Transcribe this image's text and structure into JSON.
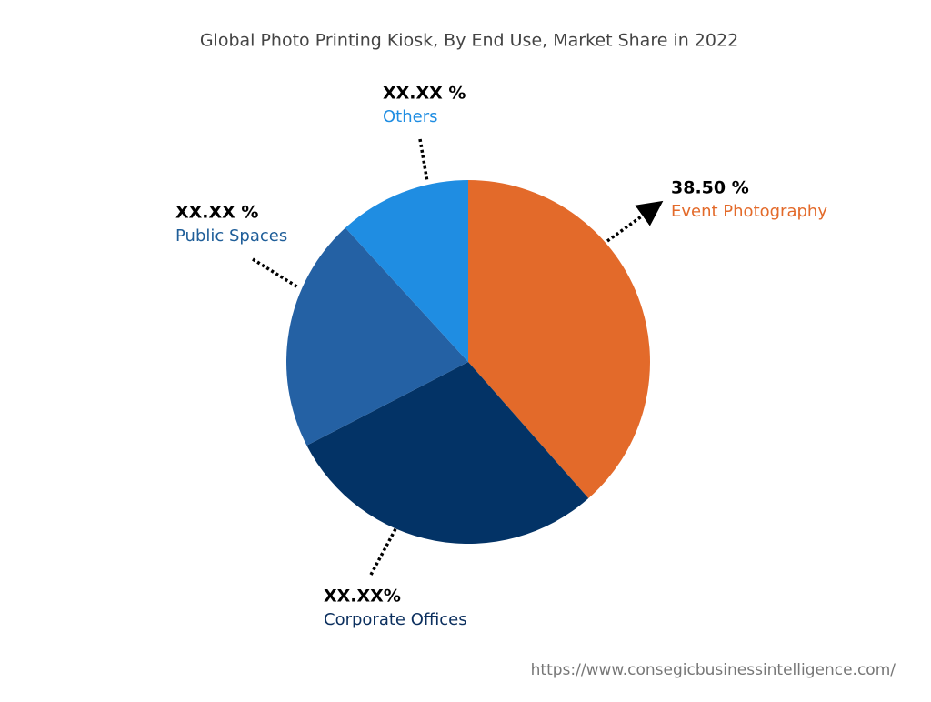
{
  "chart_data": {
    "type": "pie",
    "title": "Global  Photo Printing Kiosk, By End Use, Market Share in 2022",
    "categories": [
      "Event Photography",
      "Corporate Offices",
      "Public Spaces",
      "Others"
    ],
    "values": [
      38.5,
      28.9,
      20.8,
      11.8
    ],
    "value_labels": [
      "38.50 %",
      "XX.XX%",
      "XX.XX %",
      "XX.XX %"
    ],
    "colors": [
      "#e36a2a",
      "#033366",
      "#2461a4",
      "#1f8de2"
    ],
    "label_colors": [
      "#e36a2a",
      "#0b2f5e",
      "#1f5e99",
      "#1f8de2"
    ],
    "source": "https://www.consegicbusinessintelligence.com/"
  }
}
